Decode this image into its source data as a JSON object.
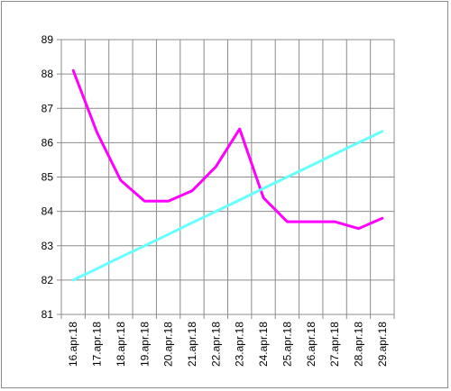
{
  "chart_data": {
    "type": "line",
    "title": "",
    "xlabel": "",
    "ylabel": "",
    "categories": [
      "16.apr.18",
      "17.apr.18",
      "18.apr.18",
      "19.apr.18",
      "20.apr.18",
      "21.apr.18",
      "22.apr.18",
      "23.apr.18",
      "24.apr.18",
      "25.apr.18",
      "26.apr.18",
      "27.apr.18",
      "28.apr.18",
      "29.apr.18"
    ],
    "ylim": [
      81,
      89
    ],
    "yticks": [
      "81",
      "82",
      "83",
      "84",
      "85",
      "86",
      "87",
      "88",
      "89"
    ],
    "grid": true,
    "legend": "none",
    "series": [
      {
        "color": "#ff00ff",
        "values": [
          88.1,
          86.3,
          84.9,
          84.3,
          84.3,
          84.6,
          85.3,
          86.4,
          84.4,
          83.7,
          83.7,
          83.7,
          83.5,
          83.8
        ]
      },
      {
        "color": "#66ffff",
        "trend": "linear",
        "values": [
          82.0,
          82.33,
          82.67,
          83.0,
          83.33,
          83.67,
          84.0,
          84.33,
          84.67,
          85.0,
          85.33,
          85.67,
          86.0,
          86.33
        ]
      }
    ]
  }
}
